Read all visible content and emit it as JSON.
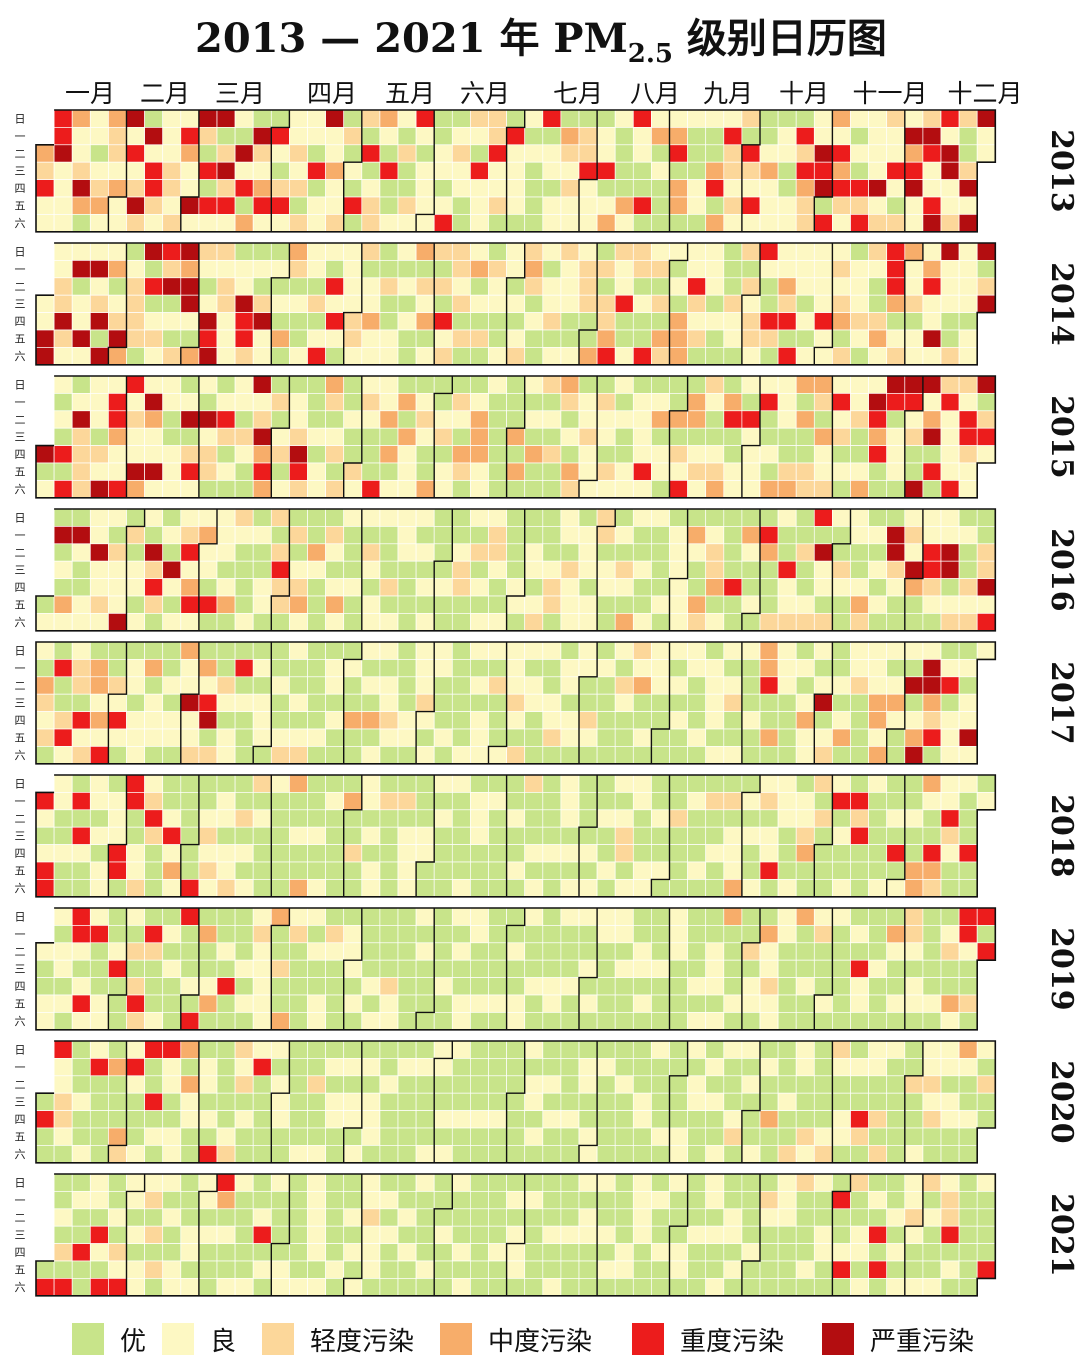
{
  "chart_data": {
    "type": "heatmap",
    "title": "2013 — 2021 年 PM",
    "title_sub": "2.5",
    "title_suffix": " 级别日历图",
    "months": [
      "一月",
      "二月",
      "三月",
      "四月",
      "五月",
      "六月",
      "七月",
      "八月",
      "九月",
      "十月",
      "十一月",
      "十二月"
    ],
    "weekdays": [
      "日",
      "一",
      "二",
      "三",
      "四",
      "五",
      "六"
    ],
    "years": [
      2013,
      2014,
      2015,
      2016,
      2017,
      2018,
      2019,
      2020,
      2021
    ],
    "categories": [
      "优",
      "良",
      "轻度污染",
      "中度污染",
      "重度污染",
      "严重污染"
    ],
    "colors": [
      "#c8e48a",
      "#fdf8c3",
      "#fcd79a",
      "#f7ad6a",
      "#ec1c1c",
      "#b30d10"
    ],
    "level_weights": {
      "2013": [
        0.2,
        0.36,
        0.14,
        0.1,
        0.13,
        0.07
      ],
      "2014": [
        0.24,
        0.36,
        0.15,
        0.1,
        0.1,
        0.05
      ],
      "2015": [
        0.3,
        0.36,
        0.14,
        0.08,
        0.08,
        0.04
      ],
      "2016": [
        0.38,
        0.34,
        0.12,
        0.07,
        0.06,
        0.03
      ],
      "2017": [
        0.44,
        0.33,
        0.1,
        0.06,
        0.05,
        0.02
      ],
      "2018": [
        0.5,
        0.33,
        0.09,
        0.05,
        0.03,
        0.0
      ],
      "2019": [
        0.56,
        0.32,
        0.07,
        0.04,
        0.01,
        0.0
      ],
      "2020": [
        0.6,
        0.3,
        0.06,
        0.02,
        0.02,
        0.0
      ],
      "2021": [
        0.62,
        0.28,
        0.06,
        0.02,
        0.02,
        0.0
      ]
    }
  }
}
